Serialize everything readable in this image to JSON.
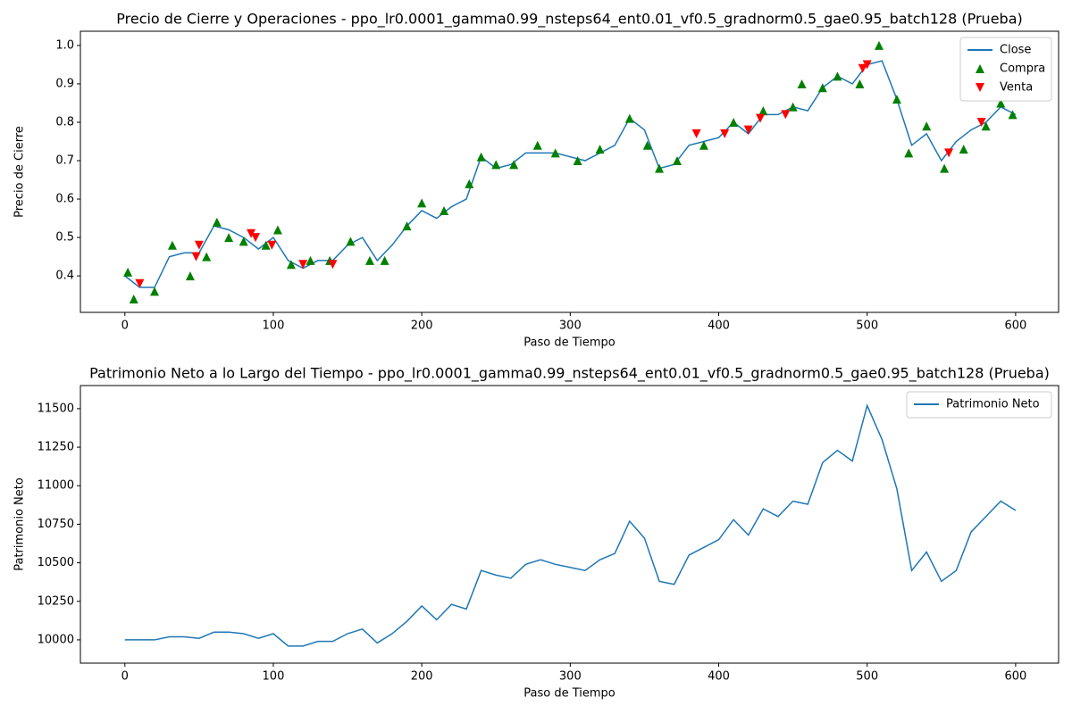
{
  "chart_data": [
    {
      "type": "line",
      "title": "Precio de Cierre y Operaciones - ppo_lr0.0001_gamma0.99_nsteps64_ent0.01_vf0.5_gradnorm0.5_gae0.95_batch128 (Prueba)",
      "xlabel": "Paso de Tiempo",
      "ylabel": "Precio de Cierre",
      "xlim": [
        -29.95,
        628.95
      ],
      "ylim": [
        0.305,
        1.037
      ],
      "xticks": [
        0,
        100,
        200,
        300,
        400,
        500,
        600
      ],
      "yticks": [
        0.4,
        0.5,
        0.6,
        0.7,
        0.8,
        0.9,
        {
          "value": 1,
          "label": "1.0"
        }
      ],
      "legend": "upper right",
      "series": [
        {
          "name": "Close",
          "type": "line",
          "color": "#1f77b4",
          "x": [
            0,
            10,
            20,
            30,
            40,
            50,
            60,
            70,
            80,
            90,
            100,
            110,
            120,
            130,
            140,
            150,
            160,
            170,
            180,
            190,
            200,
            210,
            220,
            230,
            240,
            250,
            260,
            270,
            280,
            290,
            300,
            310,
            320,
            330,
            340,
            350,
            360,
            370,
            380,
            390,
            400,
            410,
            420,
            430,
            440,
            450,
            460,
            470,
            480,
            490,
            500,
            510,
            520,
            530,
            540,
            550,
            560,
            570,
            580,
            590,
            600
          ],
          "values": [
            0.4,
            0.37,
            0.37,
            0.45,
            0.46,
            0.46,
            0.53,
            0.52,
            0.5,
            0.47,
            0.5,
            0.44,
            0.42,
            0.44,
            0.44,
            0.48,
            0.5,
            0.44,
            0.48,
            0.53,
            0.57,
            0.55,
            0.58,
            0.6,
            0.71,
            0.68,
            0.69,
            0.72,
            0.72,
            0.72,
            0.71,
            0.7,
            0.72,
            0.74,
            0.81,
            0.78,
            0.68,
            0.69,
            0.74,
            0.75,
            0.76,
            0.8,
            0.77,
            0.82,
            0.82,
            0.84,
            0.83,
            0.89,
            0.92,
            0.9,
            0.95,
            0.96,
            0.86,
            0.74,
            0.77,
            0.7,
            0.75,
            0.78,
            0.8,
            0.84,
            0.82
          ]
        },
        {
          "name": "Compra",
          "type": "scatter",
          "marker": "up",
          "color": "#008000",
          "x": [
            2,
            6,
            20,
            32,
            44,
            55,
            62,
            70,
            80,
            95,
            103,
            112,
            125,
            138,
            152,
            165,
            175,
            190,
            200,
            215,
            232,
            240,
            250,
            262,
            278,
            290,
            305,
            320,
            340,
            352,
            360,
            372,
            390,
            410,
            430,
            450,
            456,
            470,
            480,
            495,
            508,
            520,
            528,
            540,
            552,
            565,
            580,
            590,
            598
          ],
          "values": [
            0.41,
            0.34,
            0.36,
            0.48,
            0.4,
            0.45,
            0.54,
            0.5,
            0.49,
            0.48,
            0.52,
            0.43,
            0.44,
            0.44,
            0.49,
            0.44,
            0.44,
            0.53,
            0.59,
            0.57,
            0.64,
            0.71,
            0.69,
            0.69,
            0.74,
            0.72,
            0.7,
            0.73,
            0.81,
            0.74,
            0.68,
            0.7,
            0.74,
            0.8,
            0.83,
            0.84,
            0.9,
            0.89,
            0.92,
            0.9,
            1.0,
            0.86,
            0.72,
            0.79,
            0.68,
            0.73,
            0.79,
            0.85,
            0.82
          ]
        },
        {
          "name": "Venta",
          "type": "scatter",
          "marker": "down",
          "color": "#ff0000",
          "x": [
            10,
            48,
            50,
            85,
            88,
            99,
            120,
            140,
            385,
            404,
            420,
            428,
            445,
            497,
            500,
            555,
            577
          ],
          "values": [
            0.38,
            0.45,
            0.48,
            0.51,
            0.5,
            0.48,
            0.43,
            0.43,
            0.77,
            0.77,
            0.78,
            0.81,
            0.82,
            0.94,
            0.95,
            0.72,
            0.8
          ]
        }
      ]
    },
    {
      "type": "line",
      "title": "Patrimonio Neto a lo Largo del Tiempo - ppo_lr0.0001_gamma0.99_nsteps64_ent0.01_vf0.5_gradnorm0.5_gae0.95_batch128 (Prueba)",
      "xlabel": "Paso de Tiempo",
      "ylabel": "Patrimonio Neto",
      "xlim": [
        -29.95,
        628.95
      ],
      "ylim": [
        9849,
        11650
      ],
      "xticks": [
        0,
        100,
        200,
        300,
        400,
        500,
        600
      ],
      "yticks": [
        10000,
        10250,
        10500,
        10750,
        11000,
        11250,
        11500
      ],
      "legend": "upper right",
      "series": [
        {
          "name": "Patrimonio Neto",
          "type": "line",
          "color": "#1f77b4",
          "x": [
            0,
            10,
            20,
            30,
            40,
            50,
            60,
            70,
            80,
            90,
            100,
            110,
            120,
            130,
            140,
            150,
            160,
            170,
            180,
            190,
            200,
            210,
            220,
            230,
            240,
            250,
            260,
            270,
            280,
            290,
            300,
            310,
            320,
            330,
            340,
            350,
            360,
            370,
            380,
            390,
            400,
            410,
            420,
            430,
            440,
            450,
            460,
            470,
            480,
            490,
            500,
            510,
            520,
            530,
            540,
            550,
            560,
            570,
            580,
            590,
            600
          ],
          "values": [
            10000,
            10000,
            10000,
            10020,
            10020,
            10010,
            10050,
            10050,
            10040,
            10010,
            10040,
            9960,
            9960,
            9990,
            9990,
            10040,
            10070,
            9980,
            10040,
            10120,
            10220,
            10130,
            10230,
            10200,
            10450,
            10420,
            10400,
            10490,
            10520,
            10490,
            10470,
            10450,
            10520,
            10560,
            10770,
            10660,
            10380,
            10360,
            10550,
            10600,
            10650,
            10780,
            10680,
            10850,
            10800,
            10900,
            10880,
            11150,
            11230,
            11160,
            11520,
            11300,
            10980,
            10450,
            10570,
            10380,
            10450,
            10700,
            10800,
            10900,
            10840
          ]
        }
      ]
    }
  ]
}
